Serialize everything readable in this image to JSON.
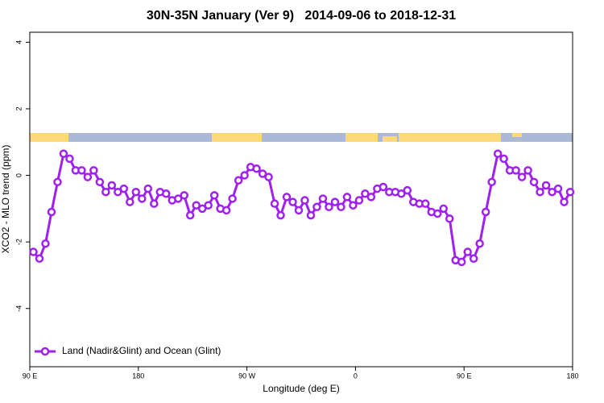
{
  "chart_data": {
    "type": "line",
    "title": "30N-35N January (Ver 9)   2014-09-06 to 2018-12-31",
    "xlabel": "Longitude (deg E)",
    "ylabel": "XCO2 - MLO trend (ppm)",
    "x": [
      93,
      98,
      103,
      108,
      113,
      118,
      123,
      128,
      133,
      138,
      143,
      148,
      153,
      158,
      163,
      168,
      173,
      178,
      183,
      188,
      193,
      198,
      203,
      208,
      213,
      218,
      223,
      228,
      233,
      238,
      243,
      248,
      253,
      258,
      263,
      268,
      273,
      278,
      283,
      288,
      293,
      298,
      303,
      308,
      313,
      318,
      323,
      328,
      333,
      338,
      343,
      348,
      353,
      358,
      363,
      368,
      373,
      378,
      383,
      388,
      393,
      398,
      403,
      408,
      413,
      418,
      423,
      428,
      433,
      438,
      443,
      448,
      453,
      458,
      463,
      468,
      473,
      478,
      483,
      488,
      493,
      498,
      503,
      508,
      513,
      518,
      523,
      528,
      533,
      538
    ],
    "series": [
      {
        "name": "Land (Nadir&Glint) and Ocean (Glint)",
        "color": "#a020f0",
        "values": [
          -2.3,
          -2.5,
          -2.05,
          -1.1,
          -0.2,
          0.65,
          0.5,
          0.15,
          0.15,
          -0.05,
          0.15,
          -0.2,
          -0.5,
          -0.3,
          -0.5,
          -0.4,
          -0.8,
          -0.5,
          -0.7,
          -0.4,
          -0.85,
          -0.5,
          -0.55,
          -0.75,
          -0.7,
          -0.6,
          -1.2,
          -0.9,
          -1,
          -0.9,
          -0.6,
          -1,
          -1.05,
          -0.7,
          -0.15,
          0,
          0.25,
          0.2,
          0.05,
          -0.05,
          -0.85,
          -1.2,
          -0.65,
          -0.8,
          -1.05,
          -0.75,
          -1.2,
          -0.95,
          -0.7,
          -0.95,
          -0.8,
          -0.95,
          -0.65,
          -0.9,
          -0.75,
          -0.55,
          -0.65,
          -0.4,
          -0.35,
          -0.5,
          -0.5,
          -0.55,
          -0.45,
          -0.8,
          -0.85,
          -0.85,
          -1.1,
          -1.15,
          -1,
          -1.3,
          -2.55,
          -2.6,
          -2.3,
          -2.5,
          -2.05,
          -1.1,
          -0.2,
          0.65,
          0.5,
          0.15,
          0.15,
          -0.05,
          0.15,
          -0.2,
          -0.5,
          -0.3,
          -0.5,
          -0.4,
          -0.8,
          -0.5
        ]
      }
    ],
    "xlim": [
      90,
      540
    ],
    "xticks": [
      {
        "value": 90,
        "label": "90 E"
      },
      180,
      {
        "value": 270,
        "label": "90 W"
      },
      {
        "value": 360,
        "label": "0"
      },
      {
        "value": 450,
        "label": "90 E"
      },
      {
        "value": 540,
        "label": "180"
      }
    ],
    "ylim": [
      -5.75,
      4.3
    ],
    "yticks": [
      4,
      2,
      0,
      -2,
      -4
    ],
    "legend": "bottom-left"
  }
}
